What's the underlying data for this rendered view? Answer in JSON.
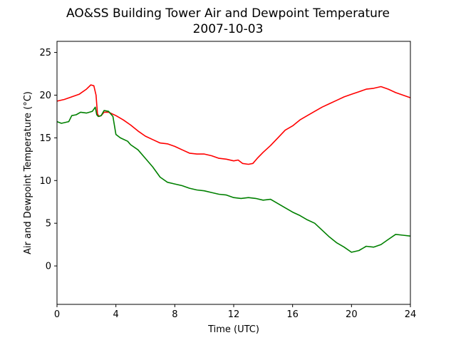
{
  "chart_data": {
    "type": "line",
    "title": "AO&SS Building Tower Air and Dewpoint Temperature",
    "subtitle": "2007-10-03",
    "xlabel": "Time (UTC)",
    "ylabel": "Air and Dewpoint Temperature (°C)",
    "xlim": [
      0,
      24
    ],
    "ylim": [
      -4.5,
      26.3
    ],
    "x_ticks": [
      0,
      4,
      8,
      12,
      16,
      20,
      24
    ],
    "y_ticks": [
      0,
      5,
      10,
      15,
      20,
      25
    ],
    "grid": false,
    "colors": {
      "air": "#ff0000",
      "dewpoint": "#008000"
    },
    "series": [
      {
        "key": "air",
        "color": "#ff0000",
        "x": [
          0,
          0.5,
          1.0,
          1.5,
          2.0,
          2.3,
          2.5,
          2.65,
          2.75,
          2.85,
          3.0,
          3.2,
          3.5,
          4.0,
          4.5,
          5.0,
          5.5,
          6.0,
          6.5,
          7.0,
          7.5,
          8.0,
          8.5,
          9.0,
          9.5,
          10.0,
          10.5,
          11.0,
          11.5,
          12.0,
          12.3,
          12.6,
          13.0,
          13.3,
          13.6,
          14.0,
          14.5,
          15.0,
          15.5,
          16.0,
          16.5,
          17.0,
          17.5,
          18.0,
          18.5,
          19.0,
          19.5,
          20.0,
          20.5,
          21.0,
          21.5,
          22.0,
          22.5,
          23.0,
          23.5,
          24.0
        ],
        "y": [
          19.3,
          19.5,
          19.8,
          20.1,
          20.7,
          21.2,
          21.1,
          20.0,
          17.8,
          17.5,
          17.6,
          18.0,
          18.0,
          17.6,
          17.1,
          16.5,
          15.8,
          15.2,
          14.8,
          14.4,
          14.3,
          14.0,
          13.6,
          13.2,
          13.1,
          13.1,
          12.9,
          12.6,
          12.5,
          12.3,
          12.4,
          12.0,
          11.9,
          12.0,
          12.6,
          13.3,
          14.1,
          15.0,
          15.9,
          16.4,
          17.1,
          17.6,
          18.1,
          18.6,
          19.0,
          19.4,
          19.8,
          20.1,
          20.4,
          20.7,
          20.8,
          21.0,
          20.7,
          20.3,
          20.0,
          19.7
        ]
      },
      {
        "key": "dewpoint",
        "color": "#008000",
        "x": [
          0,
          0.3,
          0.8,
          1.0,
          1.3,
          1.6,
          2.0,
          2.4,
          2.6,
          2.7,
          2.8,
          3.0,
          3.2,
          3.5,
          3.8,
          4.0,
          4.3,
          4.8,
          5.0,
          5.5,
          6.0,
          6.5,
          7.0,
          7.5,
          8.0,
          8.5,
          9.0,
          9.5,
          10.0,
          10.5,
          11.0,
          11.5,
          12.0,
          12.5,
          13.0,
          13.5,
          14.0,
          14.5,
          15.0,
          15.5,
          16.0,
          16.5,
          17.0,
          17.5,
          18.0,
          18.5,
          19.0,
          19.5,
          20.0,
          20.5,
          21.0,
          21.5,
          22.0,
          22.5,
          23.0,
          23.5,
          24.0
        ],
        "y": [
          16.9,
          16.7,
          16.9,
          17.6,
          17.7,
          18.0,
          17.9,
          18.1,
          18.6,
          17.7,
          17.5,
          17.6,
          18.2,
          18.1,
          17.5,
          15.4,
          15.0,
          14.6,
          14.2,
          13.6,
          12.6,
          11.6,
          10.4,
          9.8,
          9.6,
          9.4,
          9.1,
          8.9,
          8.8,
          8.6,
          8.4,
          8.3,
          8.0,
          7.9,
          8.0,
          7.9,
          7.7,
          7.8,
          7.3,
          6.8,
          6.3,
          5.9,
          5.4,
          5.0,
          4.2,
          3.4,
          2.7,
          2.2,
          1.6,
          1.8,
          2.3,
          2.2,
          2.5,
          3.1,
          3.7,
          3.6,
          3.5
        ]
      }
    ]
  }
}
